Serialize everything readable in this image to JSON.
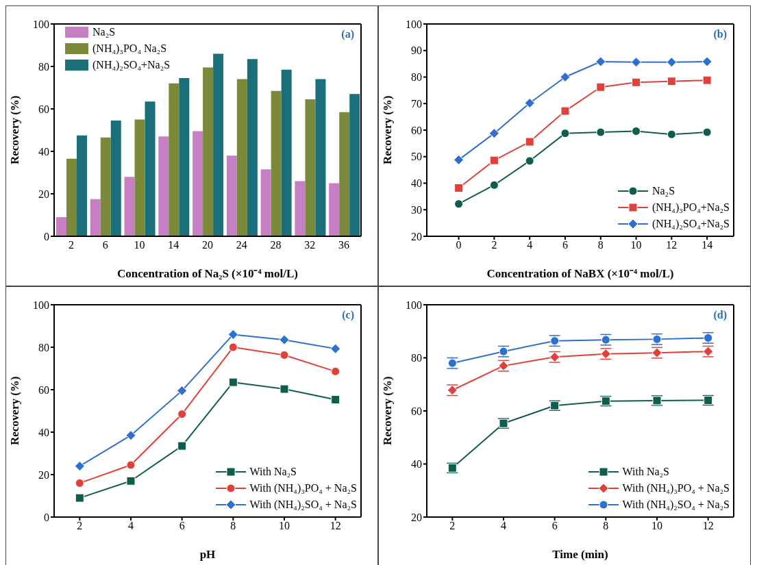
{
  "chart_data": [
    {
      "type": "bar",
      "xlabel": "Concentration of Na₂S (×10⁻⁴ mol/L)",
      "ylabel": "Recovery (%)",
      "annotations": [
        "(a)"
      ],
      "categories": [
        "2",
        "6",
        "10",
        "14",
        "20",
        "24",
        "28",
        "32",
        "36"
      ],
      "series": [
        {
          "name": "Na₂S",
          "color": "#c77fc4",
          "values": [
            9,
            17.5,
            28,
            47,
            49.5,
            38,
            31.5,
            26,
            25
          ]
        },
        {
          "name": "(NH₄)₃PO₄ Na₂S",
          "color": "#7a8a3a",
          "values": [
            36.5,
            46.5,
            55,
            72,
            79.5,
            74,
            68.5,
            64.5,
            58.5
          ]
        },
        {
          "name": "(NH₄)₂SO₄+Na₂S",
          "color": "#1a6f7a",
          "values": [
            47.5,
            54.5,
            63.5,
            74.5,
            86,
            83.5,
            78.5,
            74,
            67
          ]
        }
      ],
      "ylim": [
        0,
        100
      ],
      "yticks": [
        0,
        20,
        40,
        60,
        80,
        100
      ],
      "legend": "top left"
    },
    {
      "type": "line",
      "xlabel": "Concentration of NaBX (×10⁻⁴ mol/L)",
      "ylabel": "Recovery (%)",
      "annotations": [
        "(b)"
      ],
      "x": [
        0,
        2,
        4,
        6,
        8,
        10,
        12,
        14
      ],
      "series": [
        {
          "name": "Na₂S",
          "color": "#0e5e4e",
          "marker": "circle",
          "values": [
            32.2,
            39.3,
            48.4,
            58.8,
            59.2,
            59.6,
            58.4,
            59.2
          ]
        },
        {
          "name": "(NH₄)₃PO₄+Na₂S",
          "color": "#e0413a",
          "marker": "square",
          "values": [
            38.2,
            48.6,
            55.6,
            67.2,
            76.2,
            78.0,
            78.4,
            78.8
          ]
        },
        {
          "name": "(NH₄)₂SO₄+Na₂S",
          "color": "#2f6fcf",
          "marker": "diamond",
          "values": [
            48.8,
            58.8,
            70.2,
            80.0,
            85.8,
            85.6,
            85.6,
            85.8
          ]
        }
      ],
      "xlim": [
        -1.8,
        15.5
      ],
      "xticks": [
        0,
        2,
        4,
        6,
        8,
        10,
        12,
        14
      ],
      "ylim": [
        20,
        100
      ],
      "yticks": [
        20,
        30,
        40,
        50,
        60,
        70,
        80,
        90,
        100
      ],
      "legend": "bottom right",
      "line_style": "solid"
    },
    {
      "type": "line",
      "xlabel": "pH",
      "ylabel": "Recovery (%)",
      "annotations": [
        "(c)"
      ],
      "x": [
        2,
        4,
        6,
        8,
        10,
        12
      ],
      "series": [
        {
          "name": "With Na₂S",
          "color": "#0e5e4e",
          "marker": "square",
          "values": [
            9,
            17,
            33.5,
            63.5,
            60.3,
            55.3
          ]
        },
        {
          "name": "With (NH₄)₃PO₄ + Na₂S",
          "color": "#e0413a",
          "marker": "circle",
          "values": [
            16,
            24.5,
            48.5,
            80,
            76.3,
            68.6
          ]
        },
        {
          "name": "With (NH₄)₂SO₄ + Na₂S",
          "color": "#2f6fcf",
          "marker": "diamond",
          "values": [
            24,
            38.5,
            59.5,
            86,
            83.5,
            79.3
          ]
        }
      ],
      "xlim": [
        1,
        13
      ],
      "xticks": [
        2,
        4,
        6,
        8,
        10,
        12
      ],
      "ylim": [
        0,
        100
      ],
      "yticks": [
        0,
        20,
        40,
        60,
        80,
        100
      ],
      "legend": "bottom right",
      "line_style": "solid"
    },
    {
      "type": "line",
      "xlabel": "Time (min)",
      "ylabel": "Recovery (%)",
      "annotations": [
        "(d)"
      ],
      "x": [
        2,
        4,
        6,
        8,
        10,
        12
      ],
      "series": [
        {
          "name": "With Na₂S",
          "color": "#0e5e4e",
          "marker": "square",
          "values": [
            38.5,
            55.3,
            62,
            63.7,
            63.9,
            64
          ],
          "errors": [
            1.8,
            1.8,
            1.8,
            1.8,
            1.8,
            1.8
          ]
        },
        {
          "name": "With (NH₄)₃PO₄ + Na₂S",
          "color": "#e0413a",
          "marker": "diamond",
          "values": [
            67.8,
            77,
            80.3,
            81.5,
            81.9,
            82.4
          ],
          "errors": [
            2,
            2,
            2,
            2,
            2,
            2
          ]
        },
        {
          "name": "With (NH₄)₂SO₄ + Na₂S",
          "color": "#2f6fcf",
          "marker": "circle",
          "values": [
            78,
            82.4,
            86.4,
            86.8,
            87,
            87.5
          ],
          "errors": [
            2,
            2,
            2,
            2,
            2,
            2
          ]
        }
      ],
      "xlim": [
        1,
        13
      ],
      "xticks": [
        2,
        4,
        6,
        8,
        10,
        12
      ],
      "ylim": [
        20,
        100
      ],
      "yticks": [
        20,
        40,
        60,
        80,
        100
      ],
      "legend": "bottom right",
      "line_style": "solid"
    }
  ]
}
